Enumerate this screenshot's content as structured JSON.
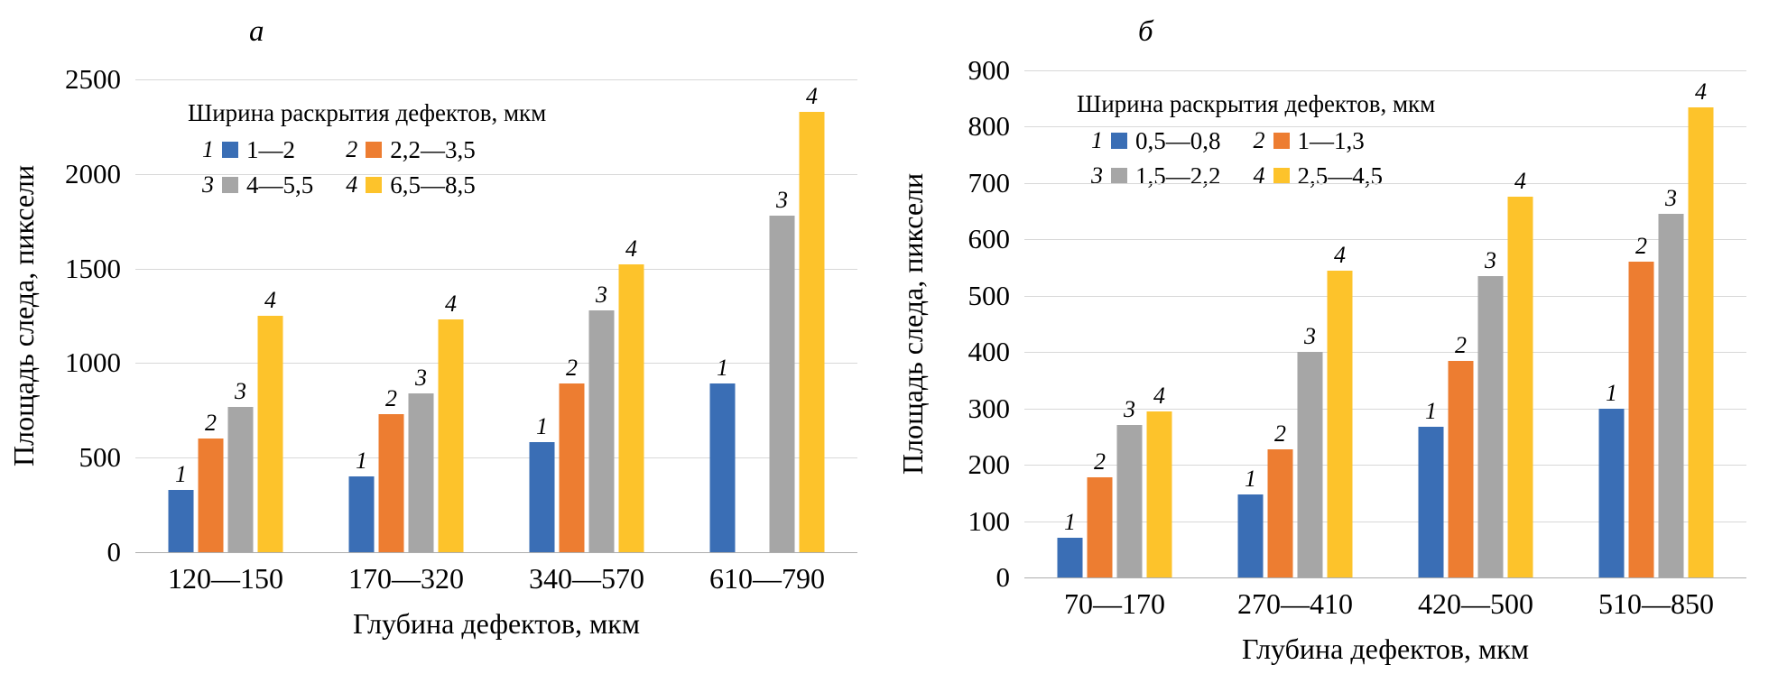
{
  "figure": {
    "background": "#ffffff",
    "gridline_color": "#d8d8d8",
    "axis_line_color": "#adadad"
  },
  "chart_data": [
    {
      "type": "bar",
      "panel_label": "а",
      "title": "",
      "ylabel": "Площадь следа, пиксели",
      "xlabel": "Глубина дефектов, мкм",
      "legend_title": "Ширина раскрытия дефектов, мкм",
      "legend_position": "top-left-inside",
      "grid": true,
      "ylim": [
        0,
        2500
      ],
      "yticks": [
        0,
        500,
        1000,
        1500,
        2000,
        2500
      ],
      "categories": [
        "120—150",
        "170—320",
        "340—570",
        "610—790"
      ],
      "series": [
        {
          "name": "1",
          "label": "1—2",
          "color": "#3A6EB5",
          "values": [
            330,
            400,
            580,
            890
          ]
        },
        {
          "name": "2",
          "label": "2,2—3,5",
          "color": "#ED7D31",
          "values": [
            600,
            730,
            890,
            null
          ]
        },
        {
          "name": "3",
          "label": "4—5,5",
          "color": "#A6A6A6",
          "values": [
            770,
            840,
            1280,
            1780
          ]
        },
        {
          "name": "4",
          "label": "6,5—8,5",
          "color": "#FDC32B",
          "values": [
            1250,
            1230,
            1520,
            2330
          ]
        }
      ]
    },
    {
      "type": "bar",
      "panel_label": "б",
      "title": "",
      "ylabel": "Площадь следа, пиксели",
      "xlabel": "Глубина дефектов, мкм",
      "legend_title": "Ширина раскрытия дефектов, мкм",
      "legend_position": "top-left-inside",
      "grid": true,
      "ylim": [
        0,
        900
      ],
      "yticks": [
        0,
        100,
        200,
        300,
        400,
        500,
        600,
        700,
        800,
        900
      ],
      "categories": [
        "70—170",
        "270—410",
        "420—500",
        "510—850"
      ],
      "series": [
        {
          "name": "1",
          "label": "0,5—0,8",
          "color": "#3A6EB5",
          "values": [
            70,
            148,
            268,
            300
          ]
        },
        {
          "name": "2",
          "label": "1—1,3",
          "color": "#ED7D31",
          "values": [
            178,
            228,
            385,
            560
          ]
        },
        {
          "name": "3",
          "label": "1,5—2,2",
          "color": "#A6A6A6",
          "values": [
            270,
            400,
            535,
            645
          ]
        },
        {
          "name": "4",
          "label": "2,5—4,5",
          "color": "#FDC32B",
          "values": [
            295,
            545,
            675,
            835
          ]
        }
      ]
    }
  ]
}
